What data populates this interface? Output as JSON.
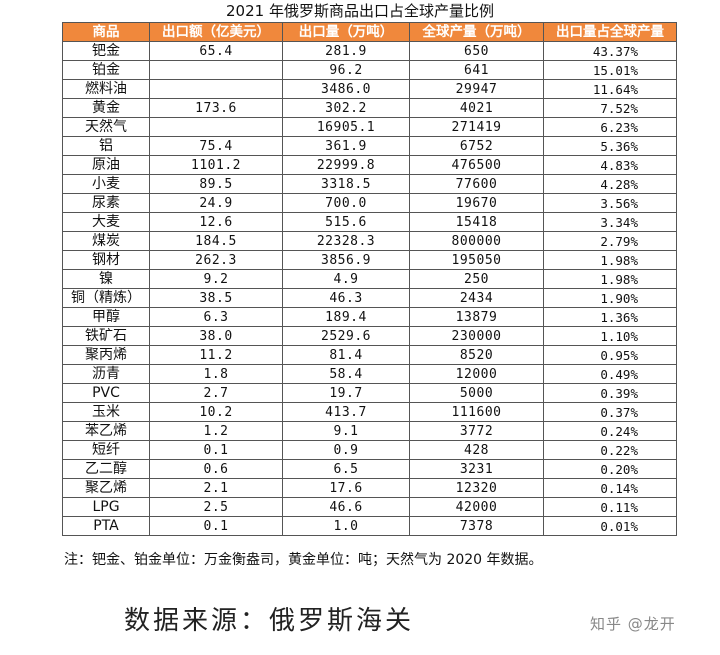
{
  "title": "2021 年俄罗斯商品出口占全球产量比例",
  "table": {
    "headers": [
      "商品",
      "出口额（亿美元）",
      "出口量（万吨）",
      "全球产量（万吨）",
      "出口量占全球产量"
    ],
    "rows": [
      [
        "钯金",
        "65.4",
        "281.9",
        "650",
        "43.37%"
      ],
      [
        "铂金",
        "",
        "96.2",
        "641",
        "15.01%"
      ],
      [
        "燃料油",
        "",
        "3486.0",
        "29947",
        "11.64%"
      ],
      [
        "黄金",
        "173.6",
        "302.2",
        "4021",
        "7.52%"
      ],
      [
        "天然气",
        "",
        "16905.1",
        "271419",
        "6.23%"
      ],
      [
        "铝",
        "75.4",
        "361.9",
        "6752",
        "5.36%"
      ],
      [
        "原油",
        "1101.2",
        "22999.8",
        "476500",
        "4.83%"
      ],
      [
        "小麦",
        "89.5",
        "3318.5",
        "77600",
        "4.28%"
      ],
      [
        "尿素",
        "24.9",
        "700.0",
        "19670",
        "3.56%"
      ],
      [
        "大麦",
        "12.6",
        "515.6",
        "15418",
        "3.34%"
      ],
      [
        "煤炭",
        "184.5",
        "22328.3",
        "800000",
        "2.79%"
      ],
      [
        "钢材",
        "262.3",
        "3856.9",
        "195050",
        "1.98%"
      ],
      [
        "镍",
        "9.2",
        "4.9",
        "250",
        "1.98%"
      ],
      [
        "铜（精炼）",
        "38.5",
        "46.3",
        "2434",
        "1.90%"
      ],
      [
        "甲醇",
        "6.3",
        "189.4",
        "13879",
        "1.36%"
      ],
      [
        "铁矿石",
        "38.0",
        "2529.6",
        "230000",
        "1.10%"
      ],
      [
        "聚丙烯",
        "11.2",
        "81.4",
        "8520",
        "0.95%"
      ],
      [
        "沥青",
        "1.8",
        "58.4",
        "12000",
        "0.49%"
      ],
      [
        "PVC",
        "2.7",
        "19.7",
        "5000",
        "0.39%"
      ],
      [
        "玉米",
        "10.2",
        "413.7",
        "111600",
        "0.37%"
      ],
      [
        "苯乙烯",
        "1.2",
        "9.1",
        "3772",
        "0.24%"
      ],
      [
        "短纤",
        "0.1",
        "0.9",
        "428",
        "0.22%"
      ],
      [
        "乙二醇",
        "0.6",
        "6.5",
        "3231",
        "0.20%"
      ],
      [
        "聚乙烯",
        "2.1",
        "17.6",
        "12320",
        "0.14%"
      ],
      [
        "LPG",
        "2.5",
        "46.6",
        "42000",
        "0.11%"
      ],
      [
        "PTA",
        "0.1",
        "1.0",
        "7378",
        "0.01%"
      ]
    ]
  },
  "note": "注：钯金、铂金单位：万金衡盎司，黄金单位：吨；天然气为 2020 年数据。",
  "source": "数据来源：俄罗斯海关",
  "watermark": "知乎 @龙开",
  "colors": {
    "header_bg": "#f0883c",
    "header_text": "#ffffff",
    "border": "#555555"
  }
}
